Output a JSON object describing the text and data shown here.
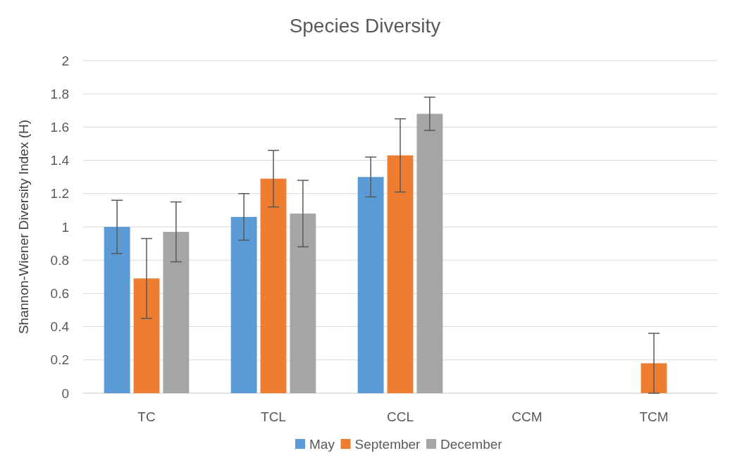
{
  "chart_data": {
    "type": "bar",
    "title": "Species Diversity",
    "ylabel": "Shannon-Wiener Diversity Index (H)",
    "categories": [
      "TC",
      "TCL",
      "CCL",
      "CCM",
      "TCM"
    ],
    "series": [
      {
        "name": "May",
        "color": "#5b9bd5",
        "values": [
          1.0,
          1.06,
          1.3,
          null,
          null
        ],
        "errors": [
          0.16,
          0.14,
          0.12,
          null,
          null
        ]
      },
      {
        "name": "September",
        "color": "#ed7d31",
        "values": [
          0.69,
          1.29,
          1.43,
          null,
          0.18
        ],
        "errors": [
          0.24,
          0.17,
          0.22,
          null,
          0.18
        ]
      },
      {
        "name": "December",
        "color": "#a5a5a5",
        "values": [
          0.97,
          1.08,
          1.68,
          null,
          null
        ],
        "errors": [
          0.18,
          0.2,
          0.1,
          null,
          null
        ]
      }
    ],
    "ylim": [
      0,
      2
    ],
    "yticks": [
      0,
      0.2,
      0.4,
      0.6,
      0.8,
      1,
      1.2,
      1.4,
      1.6,
      1.8,
      2
    ],
    "grid": "y",
    "legend": "bottom"
  }
}
